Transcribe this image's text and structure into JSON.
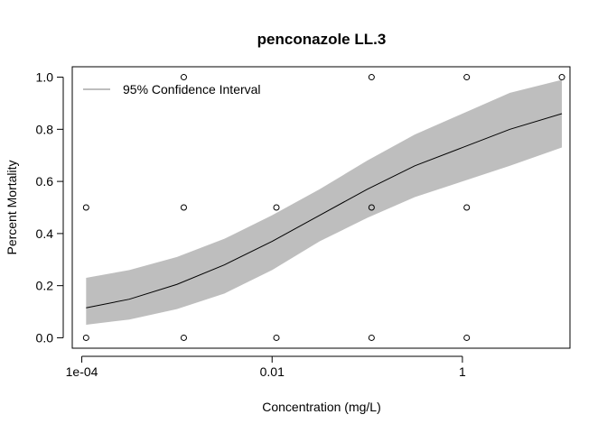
{
  "chart_data": {
    "type": "line",
    "title": "penconazole LL.3",
    "xlabel": "Concentration (mg/L)",
    "ylabel": "Percent Mortality",
    "x_scale": "log10",
    "xlim": [
      7.94e-05,
      13.5
    ],
    "ylim": [
      -0.04,
      1.04
    ],
    "x_ticks": [
      {
        "value": 0.0001,
        "label": "1e-04"
      },
      {
        "value": 0.01,
        "label": "0.01"
      },
      {
        "value": 1,
        "label": "1"
      }
    ],
    "y_ticks": [
      {
        "value": 0.0,
        "label": "0.0"
      },
      {
        "value": 0.2,
        "label": "0.2"
      },
      {
        "value": 0.4,
        "label": "0.4"
      },
      {
        "value": 0.6,
        "label": "0.6"
      },
      {
        "value": 0.8,
        "label": "0.8"
      },
      {
        "value": 1.0,
        "label": "1.0"
      }
    ],
    "points": [
      {
        "x": 0.000111,
        "y": 0.5
      },
      {
        "x": 0.000111,
        "y": 0.0
      },
      {
        "x": 0.00118,
        "y": 1.0
      },
      {
        "x": 0.00118,
        "y": 0.5
      },
      {
        "x": 0.00118,
        "y": 0.0
      },
      {
        "x": 0.0111,
        "y": 0.5
      },
      {
        "x": 0.0111,
        "y": 0.0
      },
      {
        "x": 0.111,
        "y": 1.0
      },
      {
        "x": 0.111,
        "y": 0.5
      },
      {
        "x": 0.111,
        "y": 0.0
      },
      {
        "x": 1.11,
        "y": 1.0
      },
      {
        "x": 1.11,
        "y": 0.5
      },
      {
        "x": 1.11,
        "y": 0.0
      },
      {
        "x": 11.1,
        "y": 1.0
      }
    ],
    "fit_curve": [
      {
        "x": 0.000111,
        "y": 0.115
      },
      {
        "x": 0.000316,
        "y": 0.148
      },
      {
        "x": 0.001,
        "y": 0.205
      },
      {
        "x": 0.00316,
        "y": 0.28
      },
      {
        "x": 0.01,
        "y": 0.37
      },
      {
        "x": 0.0316,
        "y": 0.47
      },
      {
        "x": 0.1,
        "y": 0.57
      },
      {
        "x": 0.316,
        "y": 0.66
      },
      {
        "x": 1,
        "y": 0.73
      },
      {
        "x": 3.16,
        "y": 0.8
      },
      {
        "x": 11.1,
        "y": 0.86
      }
    ],
    "ci_upper": [
      {
        "x": 0.000111,
        "y": 0.23
      },
      {
        "x": 0.000316,
        "y": 0.26
      },
      {
        "x": 0.001,
        "y": 0.31
      },
      {
        "x": 0.00316,
        "y": 0.38
      },
      {
        "x": 0.01,
        "y": 0.47
      },
      {
        "x": 0.0316,
        "y": 0.57
      },
      {
        "x": 0.1,
        "y": 0.68
      },
      {
        "x": 0.316,
        "y": 0.78
      },
      {
        "x": 1,
        "y": 0.86
      },
      {
        "x": 3.16,
        "y": 0.94
      },
      {
        "x": 11.1,
        "y": 0.99
      }
    ],
    "ci_lower": [
      {
        "x": 0.000111,
        "y": 0.05
      },
      {
        "x": 0.000316,
        "y": 0.07
      },
      {
        "x": 0.001,
        "y": 0.11
      },
      {
        "x": 0.00316,
        "y": 0.17
      },
      {
        "x": 0.01,
        "y": 0.26
      },
      {
        "x": 0.0316,
        "y": 0.37
      },
      {
        "x": 0.1,
        "y": 0.46
      },
      {
        "x": 0.316,
        "y": 0.54
      },
      {
        "x": 1,
        "y": 0.6
      },
      {
        "x": 3.16,
        "y": 0.66
      },
      {
        "x": 11.1,
        "y": 0.73
      }
    ],
    "legend": {
      "entries": [
        "95% Confidence Interval"
      ],
      "position": "top-left"
    },
    "colors": {
      "ci_band": "#bebebe",
      "curve": "#000000",
      "points": "#000000",
      "legend_line": "#bebebe"
    },
    "grid": false
  }
}
